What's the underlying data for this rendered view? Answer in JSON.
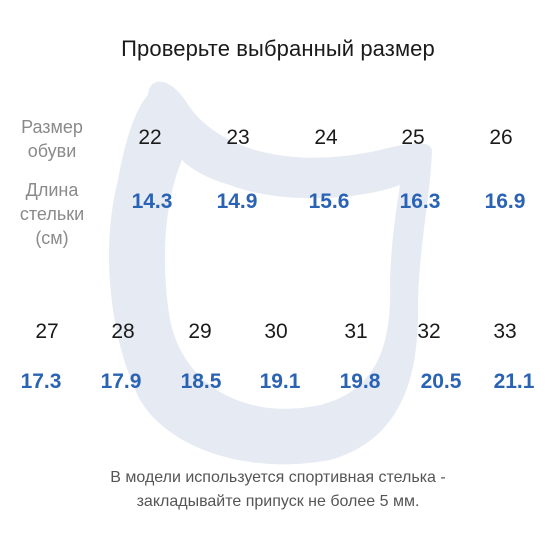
{
  "title": "Проверьте выбранный размер",
  "labels": {
    "size_line1": "Размер",
    "size_line2": "обуви",
    "length_line1": "Длина",
    "length_line2": "стельки",
    "length_line3": "(см)"
  },
  "row1": {
    "sizes": [
      "22",
      "23",
      "24",
      "25",
      "26"
    ],
    "lengths": [
      "14.3",
      "14.9",
      "15.6",
      "16.3",
      "16.9"
    ]
  },
  "row2": {
    "sizes": [
      "27",
      "28",
      "29",
      "30",
      "31",
      "32",
      "33"
    ],
    "lengths": [
      "17.3",
      "17.9",
      "18.5",
      "19.1",
      "19.8",
      "20.5",
      "21.1"
    ]
  },
  "note": {
    "line1": "В модели используется спортивная стелька -",
    "line2": "закладывайте припуск не более 5 мм."
  },
  "colors": {
    "length_values": "#2a63b4",
    "watermark": "#e6eaf3"
  }
}
